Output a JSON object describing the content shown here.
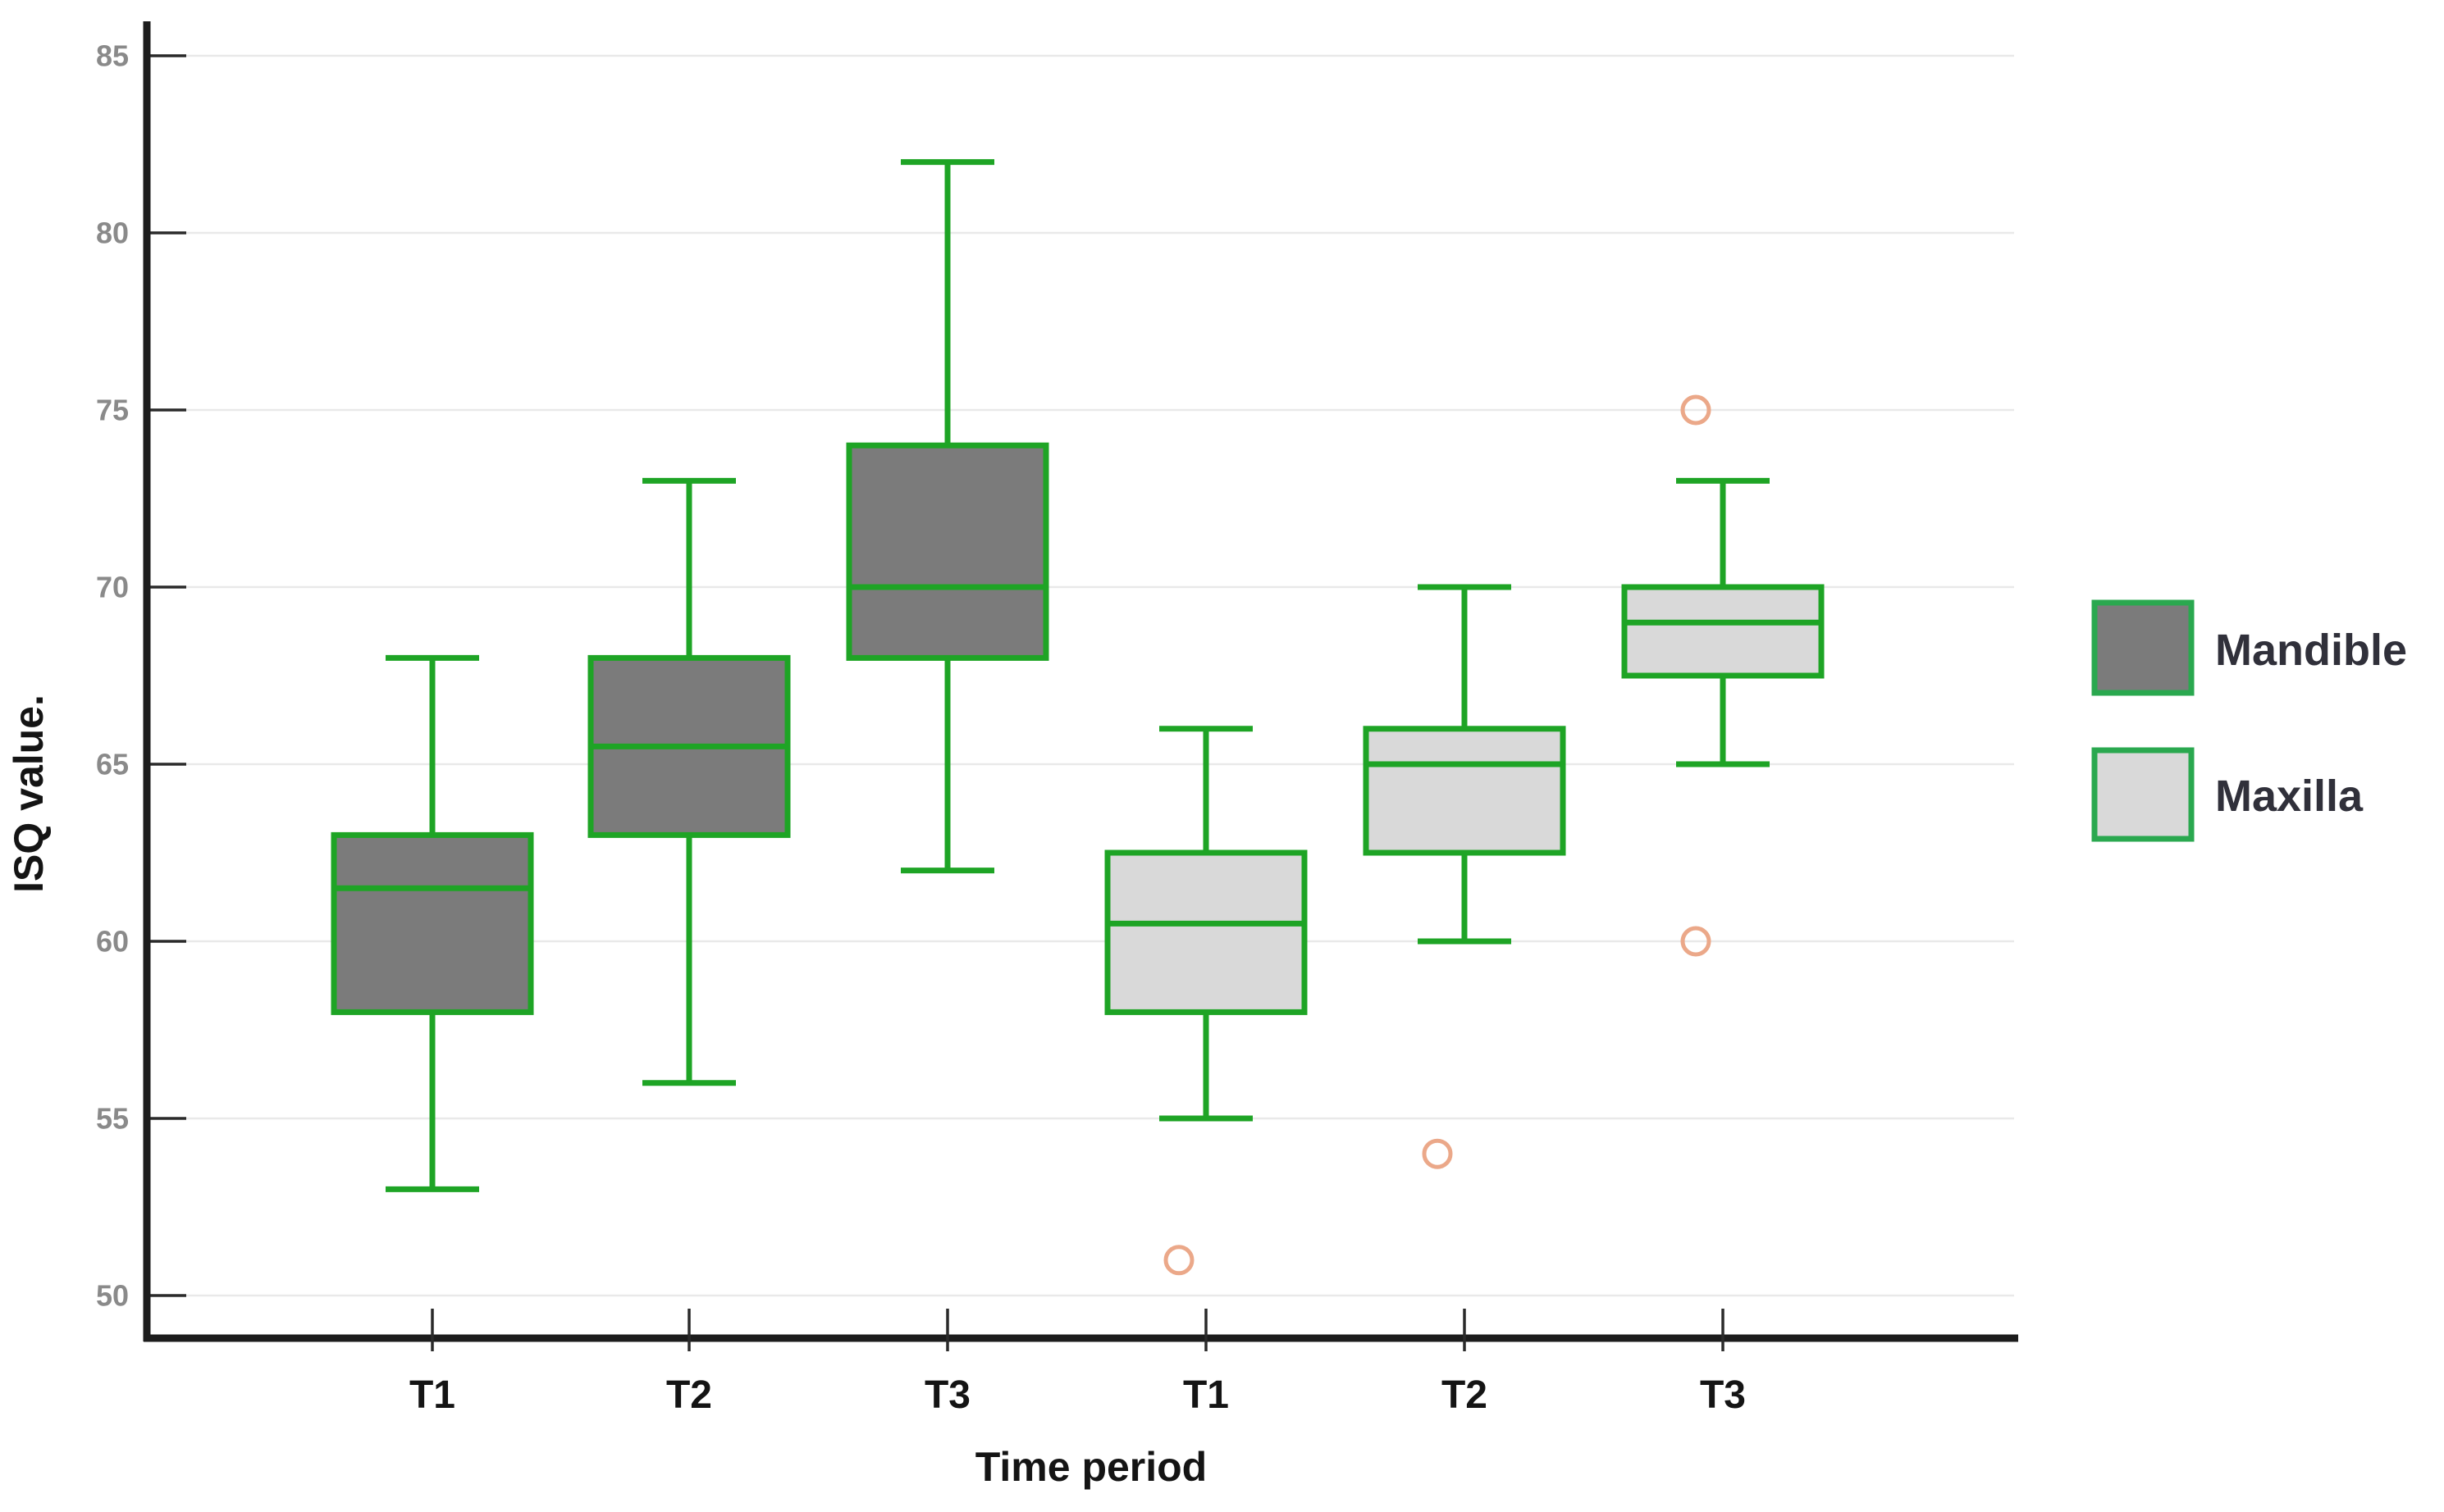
{
  "chart_data": {
    "type": "boxplot",
    "title": "",
    "xlabel": "Time period",
    "ylabel": "ISQ value.",
    "y_ticks": [
      85,
      80,
      75,
      70,
      65,
      60,
      55,
      50
    ],
    "ylim": [
      49,
      86.5
    ],
    "grid": "horizontal",
    "categories": [
      "T1",
      "T2",
      "T3",
      "T1",
      "T2",
      "T3"
    ],
    "legend": {
      "position": "right",
      "entries": [
        {
          "label": "Mandible",
          "fill": "#7b7b7b"
        },
        {
          "label": "Maxilla",
          "fill": "#d9d9d9"
        }
      ]
    },
    "series": [
      {
        "name": "Mandible",
        "fill": "#7b7b7b",
        "boxes": [
          {
            "category": "T1",
            "min": 53,
            "q1": 58,
            "median": 61.5,
            "q3": 63,
            "max": 68,
            "outliers": []
          },
          {
            "category": "T2",
            "min": 56,
            "q1": 63,
            "median": 65.5,
            "q3": 68,
            "max": 73,
            "outliers": []
          },
          {
            "category": "T3",
            "min": 62,
            "q1": 68,
            "median": 70,
            "q3": 74,
            "max": 82,
            "outliers": []
          }
        ]
      },
      {
        "name": "Maxilla",
        "fill": "#d9d9d9",
        "boxes": [
          {
            "category": "T1",
            "min": 55,
            "q1": 58,
            "median": 60.5,
            "q3": 62.5,
            "max": 66,
            "outliers": [
              51
            ]
          },
          {
            "category": "T2",
            "min": 60,
            "q1": 62.5,
            "median": 65,
            "q3": 66,
            "max": 70,
            "outliers": [
              54
            ]
          },
          {
            "category": "T3",
            "min": 65,
            "q1": 67.5,
            "median": 69,
            "q3": 70,
            "max": 73,
            "outliers": [
              75,
              60
            ]
          }
        ]
      }
    ],
    "colors": {
      "box_border": "#1ea425",
      "legend_border": "#2aa84f",
      "outlier": "#eba889",
      "gridline": "#e9e9e9",
      "axis": "#1c1c1c",
      "tick_mark": "#2a2a2a",
      "y_tick_label": "#8a8a8a",
      "x_tick_label": "#141414",
      "axis_title": "#141414",
      "legend_label": "#30303a",
      "background": "#ffffff"
    }
  }
}
